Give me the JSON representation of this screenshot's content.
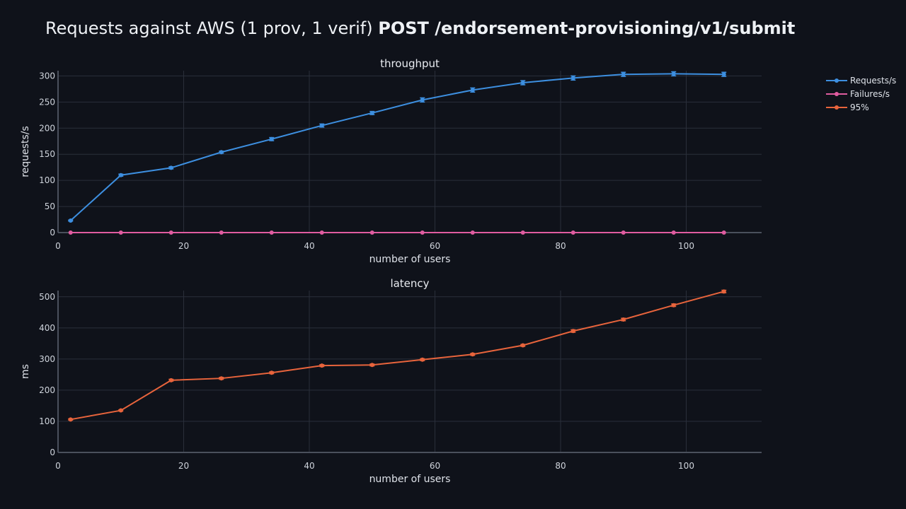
{
  "title": {
    "prefix": "Requests against AWS (1 prov, 1 verif)",
    "endpoint": "POST /endorsement-provisioning/v1/submit"
  },
  "colors": {
    "background": "#0f121a",
    "grid": "#2a2f3a",
    "axis": "#4a505c",
    "requests": "#3d8fe0",
    "failures": "#e05ca0",
    "latency": "#e8643c"
  },
  "legend": {
    "position": "top-right",
    "items": [
      {
        "label": "Requests/s",
        "color": "#3d8fe0"
      },
      {
        "label": "Failures/s",
        "color": "#e05ca0"
      },
      {
        "label": "95%",
        "color": "#e8643c"
      }
    ]
  },
  "chart_data": [
    {
      "type": "line",
      "title": "throughput",
      "xlabel": "number of users",
      "ylabel": "requests/s",
      "xlim": [
        0,
        112
      ],
      "ylim": [
        0,
        310
      ],
      "xticks": [
        0,
        20,
        40,
        60,
        80,
        100
      ],
      "yticks": [
        0,
        50,
        100,
        150,
        200,
        250,
        300
      ],
      "grid": true,
      "x": [
        2,
        10,
        18,
        26,
        34,
        42,
        50,
        58,
        66,
        74,
        82,
        90,
        98,
        106
      ],
      "series": [
        {
          "name": "Requests/s",
          "color": "#3d8fe0",
          "values": [
            23,
            110,
            124,
            154,
            179,
            205,
            229,
            254,
            273,
            287,
            296,
            303,
            304,
            303
          ],
          "error": [
            1,
            2,
            2,
            2,
            3,
            3,
            3,
            4,
            4,
            4,
            4,
            4,
            4,
            4
          ]
        },
        {
          "name": "Failures/s",
          "color": "#e05ca0",
          "values": [
            0,
            0,
            0,
            0,
            0,
            0,
            0,
            0,
            0,
            0,
            0,
            0,
            0,
            0
          ],
          "error": [
            0,
            0,
            0,
            0,
            0,
            0,
            0,
            0,
            0,
            0,
            0,
            0,
            0,
            0
          ]
        }
      ]
    },
    {
      "type": "line",
      "title": "latency",
      "xlabel": "number of users",
      "ylabel": "ms",
      "xlim": [
        0,
        112
      ],
      "ylim": [
        0,
        520
      ],
      "xticks": [
        0,
        20,
        40,
        60,
        80,
        100
      ],
      "yticks": [
        0,
        100,
        200,
        300,
        400,
        500
      ],
      "grid": true,
      "x": [
        2,
        10,
        18,
        26,
        34,
        42,
        50,
        58,
        66,
        74,
        82,
        90,
        98,
        106
      ],
      "series": [
        {
          "name": "95%",
          "color": "#e8643c",
          "values": [
            106,
            135,
            232,
            238,
            256,
            279,
            281,
            298,
            315,
            344,
            390,
            427,
            473,
            517
          ],
          "error": [
            2,
            2,
            3,
            3,
            3,
            3,
            3,
            3,
            3,
            3,
            4,
            4,
            4,
            4
          ]
        }
      ]
    }
  ]
}
